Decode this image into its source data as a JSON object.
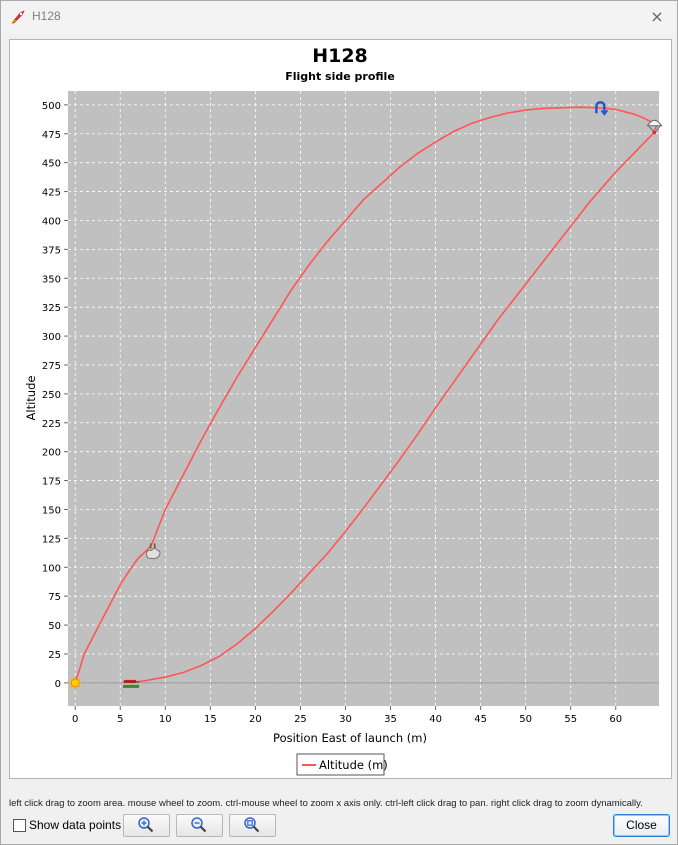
{
  "window": {
    "title": "H128",
    "close_glyph": "×"
  },
  "chart_data": {
    "type": "line",
    "title": "H128",
    "subtitle": "Flight side profile",
    "xlabel": "Position East of launch (m)",
    "ylabel": "Altitude",
    "xlim": [
      -0.8,
      64.8
    ],
    "ylim": [
      -20,
      512
    ],
    "xticks": [
      0,
      5,
      10,
      15,
      20,
      25,
      30,
      35,
      40,
      45,
      50,
      55,
      60
    ],
    "yticks": [
      0,
      25,
      50,
      75,
      100,
      125,
      150,
      175,
      200,
      225,
      250,
      275,
      300,
      325,
      350,
      375,
      400,
      425,
      450,
      475,
      500
    ],
    "grid": true,
    "legend_position": "bottom",
    "series": [
      {
        "name": "Altitude (m)",
        "color": "#ff5555",
        "x": [
          0,
          0.5,
          1,
          2,
          3,
          4,
          5,
          6,
          7,
          8,
          8.5,
          10,
          12,
          14,
          16,
          18,
          20,
          22,
          24,
          26,
          28,
          30,
          32,
          34,
          36,
          38,
          40,
          42,
          44,
          46,
          48,
          50,
          52,
          54,
          56,
          58,
          59,
          60,
          61,
          62,
          63,
          64,
          64.5,
          64,
          63,
          62,
          61,
          60,
          59,
          58,
          57,
          56,
          55,
          54,
          53,
          52,
          51,
          50,
          49,
          48,
          47,
          46,
          45,
          44,
          42,
          40,
          38,
          36,
          34,
          32,
          30,
          28,
          26,
          24,
          22,
          20,
          18,
          16,
          14,
          12,
          10,
          8.5,
          7.5,
          6.5,
          6.2
        ],
        "y": [
          0,
          12,
          25,
          40,
          55,
          70,
          85,
          97,
          108,
          115,
          120,
          150,
          180,
          210,
          238,
          265,
          290,
          315,
          340,
          362,
          382,
          400,
          418,
          432,
          446,
          458,
          468,
          477,
          484,
          489,
          493,
          495.5,
          497,
          497.5,
          498,
          497.5,
          497,
          496,
          494,
          492,
          489,
          485,
          481,
          474,
          466,
          458,
          450,
          442,
          433,
          424,
          415,
          405,
          395,
          385,
          375,
          365,
          355,
          345,
          335,
          325,
          315,
          304,
          293,
          282,
          260,
          238,
          215,
          193,
          172,
          151,
          131,
          112,
          95,
          78,
          62,
          47,
          34,
          23,
          15,
          9,
          5,
          3,
          1.5,
          0.5,
          0
        ]
      }
    ],
    "events": [
      {
        "name": "launch-icon",
        "x": 0,
        "y": 0
      },
      {
        "name": "burnout-icon",
        "x": 8.6,
        "y": 112
      },
      {
        "name": "apogee-icon",
        "x": 58.3,
        "y": 497
      },
      {
        "name": "recovery-icon",
        "x": 64.3,
        "y": 482
      },
      {
        "name": "ground-hit-icon",
        "x": 6.2,
        "y": 0
      }
    ]
  },
  "footer": {
    "hint": "left click drag to zoom area. mouse wheel to zoom. ctrl-mouse wheel to zoom x axis only. ctrl-left click drag to pan.  right click drag to zoom dynamically.",
    "show_points_label": "Show data points",
    "zoom_in_icon": "zoom-in-icon",
    "zoom_out_icon": "zoom-out-icon",
    "zoom_fit_icon": "zoom-fit-icon",
    "close_label": "Close"
  }
}
